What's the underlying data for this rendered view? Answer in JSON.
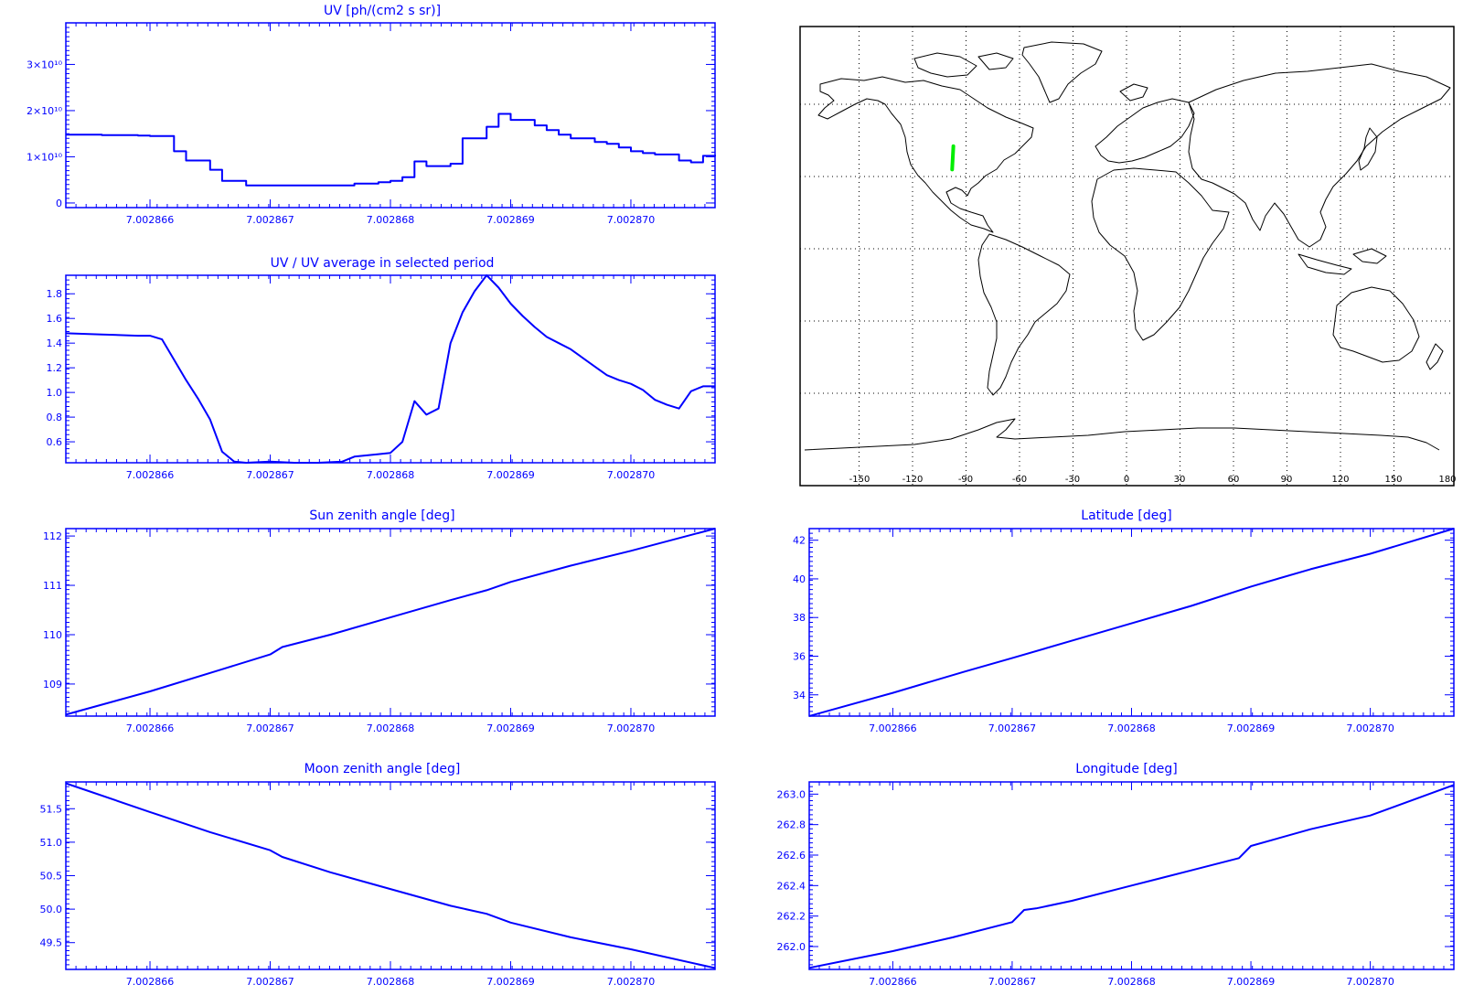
{
  "colors": {
    "plot": "#0000ff",
    "track": "#00ee00",
    "map": "#000000"
  },
  "chart_data": [
    {
      "type": "line",
      "step": true,
      "title": "UV [ph/(cm2 s sr)]",
      "xlim": [
        7.0028653,
        7.0028707
      ],
      "ylim": [
        -1000000000.0,
        39000000000.0
      ],
      "xticks": [
        7.002866,
        7.002867,
        7.002868,
        7.002869,
        7.00287
      ],
      "xtick_labels": [
        "7.002866",
        "7.002867",
        "7.002868",
        "7.002869",
        "7.002870"
      ],
      "yticks": [
        0,
        10000000000.0,
        20000000000.0,
        30000000000.0
      ],
      "ytick_labels": [
        "0",
        "1×10¹⁰",
        "2×10¹⁰",
        "3×10¹⁰"
      ],
      "x": [
        7.0028653,
        7.0028656,
        7.0028659,
        7.002866,
        7.0028662,
        7.0028663,
        7.0028665,
        7.0028666,
        7.0028668,
        7.002867,
        7.0028672,
        7.0028674,
        7.0028676,
        7.0028677,
        7.0028679,
        7.002868,
        7.0028681,
        7.0028682,
        7.0028683,
        7.0028685,
        7.0028686,
        7.0028688,
        7.0028689,
        7.002869,
        7.0028692,
        7.0028693,
        7.0028694,
        7.0028695,
        7.0028697,
        7.0028698,
        7.0028699,
        7.00287,
        7.0028701,
        7.0028702,
        7.0028704,
        7.0028705,
        7.0028706,
        7.0028707
      ],
      "values": [
        14800000000.0,
        14700000000.0,
        14600000000.0,
        14500000000.0,
        11200000000.0,
        9200000000.0,
        7200000000.0,
        4800000000.0,
        3800000000.0,
        3800000000.0,
        3800000000.0,
        3800000000.0,
        3800000000.0,
        4200000000.0,
        4500000000.0,
        4800000000.0,
        5600000000.0,
        9000000000.0,
        8000000000.0,
        8500000000.0,
        14000000000.0,
        16500000000.0,
        19300000000.0,
        18000000000.0,
        16800000000.0,
        15800000000.0,
        14800000000.0,
        14000000000.0,
        13200000000.0,
        12800000000.0,
        12000000000.0,
        11200000000.0,
        10800000000.0,
        10500000000.0,
        9200000000.0,
        8800000000.0,
        10200000000.0,
        10400000000.0
      ]
    },
    {
      "type": "line",
      "title": "UV / UV average in selected period",
      "xlim": [
        7.0028653,
        7.0028707
      ],
      "ylim": [
        0.43,
        1.95
      ],
      "xticks": [
        7.002866,
        7.002867,
        7.002868,
        7.002869,
        7.00287
      ],
      "xtick_labels": [
        "7.002866",
        "7.002867",
        "7.002868",
        "7.002869",
        "7.002870"
      ],
      "yticks": [
        0.6,
        0.8,
        1.0,
        1.2,
        1.4,
        1.6,
        1.8
      ],
      "ytick_labels": [
        "0.6",
        "0.8",
        "1.0",
        "1.2",
        "1.4",
        "1.6",
        "1.8"
      ],
      "x": [
        7.0028653,
        7.0028656,
        7.0028659,
        7.002866,
        7.0028661,
        7.0028663,
        7.0028664,
        7.0028665,
        7.0028666,
        7.0028667,
        7.0028668,
        7.002867,
        7.0028672,
        7.0028674,
        7.0028676,
        7.0028677,
        7.0028679,
        7.002868,
        7.0028681,
        7.0028682,
        7.0028683,
        7.0028684,
        7.0028685,
        7.0028686,
        7.0028687,
        7.0028688,
        7.0028689,
        7.002869,
        7.0028691,
        7.0028692,
        7.0028693,
        7.0028694,
        7.0028695,
        7.0028696,
        7.0028697,
        7.0028698,
        7.0028699,
        7.00287,
        7.0028701,
        7.0028702,
        7.0028703,
        7.0028704,
        7.0028705,
        7.0028706,
        7.0028707
      ],
      "values": [
        1.48,
        1.47,
        1.46,
        1.46,
        1.43,
        1.1,
        0.95,
        0.78,
        0.52,
        0.44,
        0.43,
        0.44,
        0.43,
        0.43,
        0.44,
        0.48,
        0.5,
        0.51,
        0.6,
        0.93,
        0.82,
        0.87,
        1.4,
        1.65,
        1.82,
        1.95,
        1.85,
        1.72,
        1.62,
        1.53,
        1.45,
        1.4,
        1.35,
        1.28,
        1.21,
        1.14,
        1.1,
        1.07,
        1.02,
        0.94,
        0.9,
        0.87,
        1.01,
        1.05,
        1.05
      ]
    },
    {
      "type": "line",
      "title": "Sun zenith angle [deg]",
      "xlim": [
        7.0028653,
        7.0028707
      ],
      "ylim": [
        108.35,
        112.15
      ],
      "xticks": [
        7.002866,
        7.002867,
        7.002868,
        7.002869,
        7.00287
      ],
      "xtick_labels": [
        "7.002866",
        "7.002867",
        "7.002868",
        "7.002869",
        "7.002870"
      ],
      "yticks": [
        109,
        110,
        111,
        112
      ],
      "ytick_labels": [
        "109",
        "110",
        "111",
        "112"
      ],
      "x": [
        7.0028653,
        7.002866,
        7.0028666,
        7.002867,
        7.0028671,
        7.0028675,
        7.002868,
        7.0028685,
        7.0028688,
        7.002869,
        7.0028695,
        7.00287,
        7.0028707
      ],
      "values": [
        108.38,
        108.85,
        109.3,
        109.6,
        109.75,
        110.0,
        110.35,
        110.7,
        110.9,
        111.07,
        111.4,
        111.7,
        112.15
      ]
    },
    {
      "type": "line",
      "title": "Moon zenith angle [deg]",
      "xlim": [
        7.0028653,
        7.0028707
      ],
      "ylim": [
        49.1,
        51.9
      ],
      "xticks": [
        7.002866,
        7.002867,
        7.002868,
        7.002869,
        7.00287
      ],
      "xtick_labels": [
        "7.002866",
        "7.002867",
        "7.002868",
        "7.002869",
        "7.002870"
      ],
      "yticks": [
        49.5,
        50.0,
        50.5,
        51.0,
        51.5
      ],
      "ytick_labels": [
        "49.5",
        "50.0",
        "50.5",
        "51.0",
        "51.5"
      ],
      "x": [
        7.0028653,
        7.002866,
        7.0028665,
        7.002867,
        7.0028671,
        7.0028675,
        7.002868,
        7.0028685,
        7.0028688,
        7.002869,
        7.0028695,
        7.00287,
        7.0028707
      ],
      "values": [
        51.88,
        51.45,
        51.15,
        50.88,
        50.78,
        50.55,
        50.3,
        50.05,
        49.93,
        49.8,
        49.58,
        49.4,
        49.12
      ]
    },
    {
      "type": "line",
      "title": "Latitude [deg]",
      "xlim": [
        7.0028653,
        7.0028707
      ],
      "ylim": [
        32.9,
        42.6
      ],
      "xticks": [
        7.002866,
        7.002867,
        7.002868,
        7.002869,
        7.00287
      ],
      "xtick_labels": [
        "7.002866",
        "7.002867",
        "7.002868",
        "7.002869",
        "7.002870"
      ],
      "yticks": [
        34,
        36,
        38,
        40,
        42
      ],
      "ytick_labels": [
        "34",
        "36",
        "38",
        "40",
        "42"
      ],
      "x": [
        7.0028653,
        7.002866,
        7.0028666,
        7.002867,
        7.0028675,
        7.002868,
        7.0028685,
        7.002869,
        7.0028695,
        7.00287,
        7.0028707
      ],
      "values": [
        32.9,
        34.1,
        35.2,
        35.9,
        36.8,
        37.7,
        38.6,
        39.6,
        40.5,
        41.3,
        42.6
      ]
    },
    {
      "type": "line",
      "title": "Longitude [deg]",
      "xlim": [
        7.0028653,
        7.0028707
      ],
      "ylim": [
        261.85,
        263.08
      ],
      "xticks": [
        7.002866,
        7.002867,
        7.002868,
        7.002869,
        7.00287
      ],
      "xtick_labels": [
        "7.002866",
        "7.002867",
        "7.002868",
        "7.002869",
        "7.002870"
      ],
      "yticks": [
        262.0,
        262.2,
        262.4,
        262.6,
        262.8,
        263.0
      ],
      "ytick_labels": [
        "262.0",
        "262.2",
        "262.4",
        "262.6",
        "262.8",
        "263.0"
      ],
      "x": [
        7.0028653,
        7.002866,
        7.0028665,
        7.002867,
        7.0028671,
        7.0028672,
        7.0028675,
        7.002868,
        7.0028685,
        7.0028689,
        7.002869,
        7.0028695,
        7.00287,
        7.0028707
      ],
      "values": [
        261.86,
        261.97,
        262.06,
        262.16,
        262.24,
        262.25,
        262.3,
        262.4,
        262.5,
        262.58,
        262.66,
        262.77,
        262.86,
        263.06
      ]
    }
  ],
  "map": {
    "lon_ticks": [
      "-150",
      "-120",
      "-90",
      "-60",
      "-30",
      "0",
      "30",
      "60",
      "90",
      "120",
      "150",
      "180"
    ],
    "track": [
      {
        "lon": -97.8,
        "lat": 32.9
      },
      {
        "lon": -97.1,
        "lat": 42.6
      }
    ]
  }
}
